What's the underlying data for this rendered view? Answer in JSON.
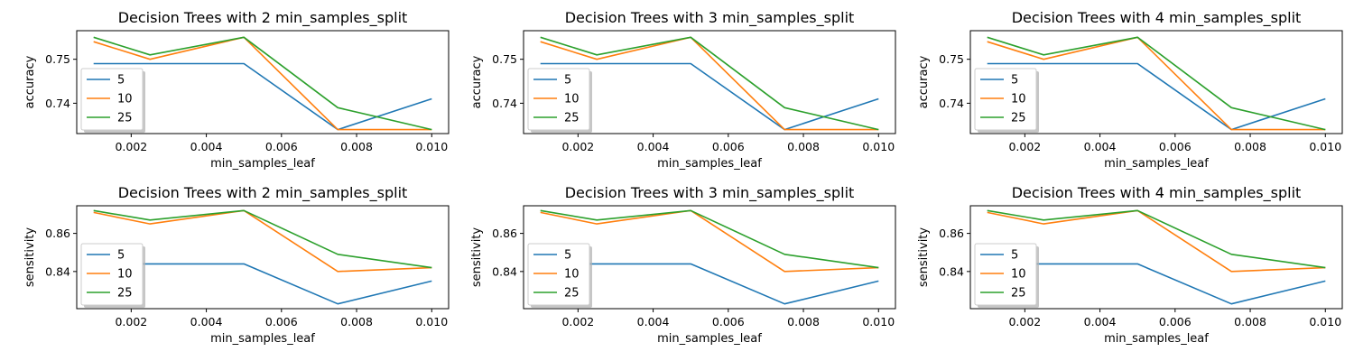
{
  "chart_data": [
    {
      "type": "line",
      "title": "Decision Trees with 2 min_samples_split",
      "xlabel": "min_samples_leaf",
      "ylabel": "accuracy",
      "xlim": [
        0.00055,
        0.01045
      ],
      "ylim": [
        0.7331,
        0.7565
      ],
      "xticks": [
        0.002,
        0.004,
        0.006,
        0.008,
        0.01
      ],
      "xtick_labels": [
        "0.002",
        "0.004",
        "0.006",
        "0.008",
        "0.010"
      ],
      "yticks": [
        0.74,
        0.75
      ],
      "ytick_labels": [
        "0.74",
        "0.75"
      ],
      "legend_position": "lower-left",
      "x": [
        0.001,
        0.0025,
        0.005,
        0.0075,
        0.01
      ],
      "series": [
        {
          "name": "5",
          "color": "#1f77b4",
          "values": [
            0.749,
            0.749,
            0.749,
            0.734,
            0.741
          ]
        },
        {
          "name": "10",
          "color": "#ff7f0e",
          "values": [
            0.754,
            0.75,
            0.755,
            0.734,
            0.734
          ]
        },
        {
          "name": "25",
          "color": "#2ca02c",
          "values": [
            0.755,
            0.751,
            0.755,
            0.739,
            0.734
          ]
        }
      ]
    },
    {
      "type": "line",
      "title": "Decision Trees with 3 min_samples_split",
      "xlabel": "min_samples_leaf",
      "ylabel": "accuracy",
      "xlim": [
        0.00055,
        0.01045
      ],
      "ylim": [
        0.7331,
        0.7565
      ],
      "xticks": [
        0.002,
        0.004,
        0.006,
        0.008,
        0.01
      ],
      "xtick_labels": [
        "0.002",
        "0.004",
        "0.006",
        "0.008",
        "0.010"
      ],
      "yticks": [
        0.74,
        0.75
      ],
      "ytick_labels": [
        "0.74",
        "0.75"
      ],
      "legend_position": "lower-left",
      "x": [
        0.001,
        0.0025,
        0.005,
        0.0075,
        0.01
      ],
      "series": [
        {
          "name": "5",
          "color": "#1f77b4",
          "values": [
            0.749,
            0.749,
            0.749,
            0.734,
            0.741
          ]
        },
        {
          "name": "10",
          "color": "#ff7f0e",
          "values": [
            0.754,
            0.75,
            0.755,
            0.734,
            0.734
          ]
        },
        {
          "name": "25",
          "color": "#2ca02c",
          "values": [
            0.755,
            0.751,
            0.755,
            0.739,
            0.734
          ]
        }
      ]
    },
    {
      "type": "line",
      "title": "Decision Trees with 4 min_samples_split",
      "xlabel": "min_samples_leaf",
      "ylabel": "accuracy",
      "xlim": [
        0.00055,
        0.01045
      ],
      "ylim": [
        0.7331,
        0.7565
      ],
      "xticks": [
        0.002,
        0.004,
        0.006,
        0.008,
        0.01
      ],
      "xtick_labels": [
        "0.002",
        "0.004",
        "0.006",
        "0.008",
        "0.010"
      ],
      "yticks": [
        0.74,
        0.75
      ],
      "ytick_labels": [
        "0.74",
        "0.75"
      ],
      "legend_position": "lower-left",
      "x": [
        0.001,
        0.0025,
        0.005,
        0.0075,
        0.01
      ],
      "series": [
        {
          "name": "5",
          "color": "#1f77b4",
          "values": [
            0.749,
            0.749,
            0.749,
            0.734,
            0.741
          ]
        },
        {
          "name": "10",
          "color": "#ff7f0e",
          "values": [
            0.754,
            0.75,
            0.755,
            0.734,
            0.734
          ]
        },
        {
          "name": "25",
          "color": "#2ca02c",
          "values": [
            0.755,
            0.751,
            0.755,
            0.739,
            0.734
          ]
        }
      ]
    },
    {
      "type": "line",
      "title": "Decision Trees with 2 min_samples_split",
      "xlabel": "min_samples_leaf",
      "ylabel": "sensitivity",
      "xlim": [
        0.00055,
        0.01045
      ],
      "ylim": [
        0.8205,
        0.8745
      ],
      "xticks": [
        0.002,
        0.004,
        0.006,
        0.008,
        0.01
      ],
      "xtick_labels": [
        "0.002",
        "0.004",
        "0.006",
        "0.008",
        "0.010"
      ],
      "yticks": [
        0.84,
        0.86
      ],
      "ytick_labels": [
        "0.84",
        "0.86"
      ],
      "legend_position": "lower-left",
      "x": [
        0.001,
        0.0025,
        0.005,
        0.0075,
        0.01
      ],
      "series": [
        {
          "name": "5",
          "color": "#1f77b4",
          "values": [
            0.844,
            0.844,
            0.844,
            0.823,
            0.835
          ]
        },
        {
          "name": "10",
          "color": "#ff7f0e",
          "values": [
            0.871,
            0.865,
            0.872,
            0.84,
            0.842
          ]
        },
        {
          "name": "25",
          "color": "#2ca02c",
          "values": [
            0.872,
            0.867,
            0.872,
            0.849,
            0.842
          ]
        }
      ]
    },
    {
      "type": "line",
      "title": "Decision Trees with 3 min_samples_split",
      "xlabel": "min_samples_leaf",
      "ylabel": "sensitivity",
      "xlim": [
        0.00055,
        0.01045
      ],
      "ylim": [
        0.8205,
        0.8745
      ],
      "xticks": [
        0.002,
        0.004,
        0.006,
        0.008,
        0.01
      ],
      "xtick_labels": [
        "0.002",
        "0.004",
        "0.006",
        "0.008",
        "0.010"
      ],
      "yticks": [
        0.84,
        0.86
      ],
      "ytick_labels": [
        "0.84",
        "0.86"
      ],
      "legend_position": "lower-left",
      "x": [
        0.001,
        0.0025,
        0.005,
        0.0075,
        0.01
      ],
      "series": [
        {
          "name": "5",
          "color": "#1f77b4",
          "values": [
            0.844,
            0.844,
            0.844,
            0.823,
            0.835
          ]
        },
        {
          "name": "10",
          "color": "#ff7f0e",
          "values": [
            0.871,
            0.865,
            0.872,
            0.84,
            0.842
          ]
        },
        {
          "name": "25",
          "color": "#2ca02c",
          "values": [
            0.872,
            0.867,
            0.872,
            0.849,
            0.842
          ]
        }
      ]
    },
    {
      "type": "line",
      "title": "Decision Trees with 4 min_samples_split",
      "xlabel": "min_samples_leaf",
      "ylabel": "sensitivity",
      "xlim": [
        0.00055,
        0.01045
      ],
      "ylim": [
        0.8205,
        0.8745
      ],
      "xticks": [
        0.002,
        0.004,
        0.006,
        0.008,
        0.01
      ],
      "xtick_labels": [
        "0.002",
        "0.004",
        "0.006",
        "0.008",
        "0.010"
      ],
      "yticks": [
        0.84,
        0.86
      ],
      "ytick_labels": [
        "0.84",
        "0.86"
      ],
      "legend_position": "lower-left",
      "x": [
        0.001,
        0.0025,
        0.005,
        0.0075,
        0.01
      ],
      "series": [
        {
          "name": "5",
          "color": "#1f77b4",
          "values": [
            0.844,
            0.844,
            0.844,
            0.823,
            0.835
          ]
        },
        {
          "name": "10",
          "color": "#ff7f0e",
          "values": [
            0.871,
            0.865,
            0.872,
            0.84,
            0.842
          ]
        },
        {
          "name": "25",
          "color": "#2ca02c",
          "values": [
            0.872,
            0.867,
            0.872,
            0.849,
            0.842
          ]
        }
      ]
    }
  ]
}
